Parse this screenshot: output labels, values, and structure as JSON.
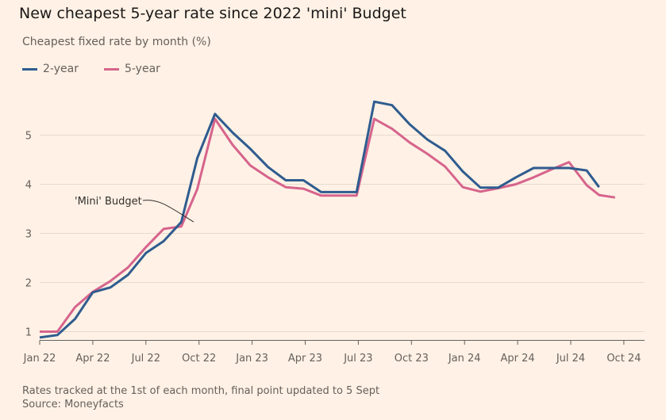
{
  "header": {
    "title": "New cheapest 5-year rate since 2022 'mini' Budget",
    "subtitle": "Cheapest fixed rate by month (%)"
  },
  "footer": {
    "note": "Rates tracked at the 1st of each month, final point updated to 5 Sept",
    "source": "Source: Moneyfacts"
  },
  "colors": {
    "background": "#fff1e5",
    "two_year": "#2f5c8f",
    "five_year": "#d6648c",
    "grid": "#e6d9ce",
    "axis_text": "#66605c"
  },
  "chart_data": {
    "type": "line",
    "title": "New cheapest 5-year rate since 2022 'mini' Budget",
    "subtitle": "Cheapest fixed rate by month (%)",
    "xlabel": "",
    "ylabel": "",
    "x": [
      "Jan 22",
      "Feb 22",
      "Mar 22",
      "Apr 22",
      "May 22",
      "Jun 22",
      "Jul 22",
      "Aug 22",
      "Sep 22",
      "Oct 22",
      "Nov 22",
      "Dec 22",
      "Jan 23",
      "Feb 23",
      "Mar 23",
      "Apr 23",
      "May 23",
      "Jun 23",
      "Jul 23",
      "Aug 23",
      "Sep 23",
      "Oct 23",
      "Nov 23",
      "Dec 23",
      "Jan 24",
      "Feb 24",
      "Mar 24",
      "Apr 24",
      "May 24",
      "Jun 24",
      "Jul 24",
      "Aug 24",
      "Sep 24"
    ],
    "x_tick_labels": [
      "Jan 22",
      "Apr 22",
      "Jul 22",
      "Oct 22",
      "Jan 23",
      "Apr 23",
      "Jul 23",
      "Oct 23",
      "Jan 24",
      "Apr 24",
      "Jul 24",
      "Oct 24"
    ],
    "x_tick_positions": [
      0,
      3,
      6,
      9,
      12,
      15,
      18,
      21,
      24,
      27,
      30,
      33
    ],
    "y_ticks": [
      1,
      2,
      3,
      4,
      5
    ],
    "ylim": [
      0.85,
      5.85
    ],
    "xlim": [
      0,
      33.3
    ],
    "grid": true,
    "legend": "top-left",
    "series": [
      {
        "name": "2-year",
        "color": "#2f5c8f",
        "x": [
          0,
          1,
          2,
          3,
          4,
          5,
          6,
          7,
          8,
          8.9,
          9.9,
          10.9,
          11.9,
          12.9,
          13.9,
          14.9,
          15.9,
          16.9,
          17.9,
          18.9,
          19.9,
          20.9,
          21.9,
          22.9,
          23.9,
          24.9,
          25.9,
          26.9,
          27.9,
          28.9,
          29.9,
          30.9,
          31.6
        ],
        "values": [
          0.88,
          0.93,
          1.26,
          1.8,
          1.9,
          2.16,
          2.6,
          2.84,
          3.23,
          4.53,
          5.43,
          5.05,
          4.72,
          4.35,
          4.08,
          4.08,
          3.84,
          3.84,
          3.84,
          5.68,
          5.61,
          5.22,
          4.91,
          4.68,
          4.26,
          3.93,
          3.93,
          4.14,
          4.33,
          4.33,
          4.33,
          4.28,
          3.94
        ]
      },
      {
        "name": "5-year",
        "color": "#d6648c",
        "x": [
          0,
          1,
          2,
          3,
          4,
          5,
          6,
          7,
          8,
          8.9,
          9.9,
          10.9,
          11.9,
          12.9,
          13.9,
          14.9,
          15.9,
          16.9,
          17.9,
          18.9,
          19.9,
          20.9,
          21.9,
          22.9,
          23.9,
          24.9,
          25.9,
          26.9,
          27.9,
          28.9,
          29.9,
          30.9,
          31.6,
          32.5
        ],
        "values": [
          1.0,
          1.0,
          1.5,
          1.81,
          2.03,
          2.31,
          2.72,
          3.09,
          3.14,
          3.9,
          5.33,
          4.8,
          4.38,
          4.14,
          3.94,
          3.91,
          3.77,
          3.77,
          3.77,
          5.33,
          5.13,
          4.85,
          4.62,
          4.36,
          3.94,
          3.85,
          3.92,
          4.0,
          4.14,
          4.3,
          4.45,
          3.98,
          3.78,
          3.73
        ]
      }
    ],
    "annotations": [
      {
        "text": "'Mini' Budget",
        "x": 8.7,
        "y": 3.2
      }
    ]
  }
}
